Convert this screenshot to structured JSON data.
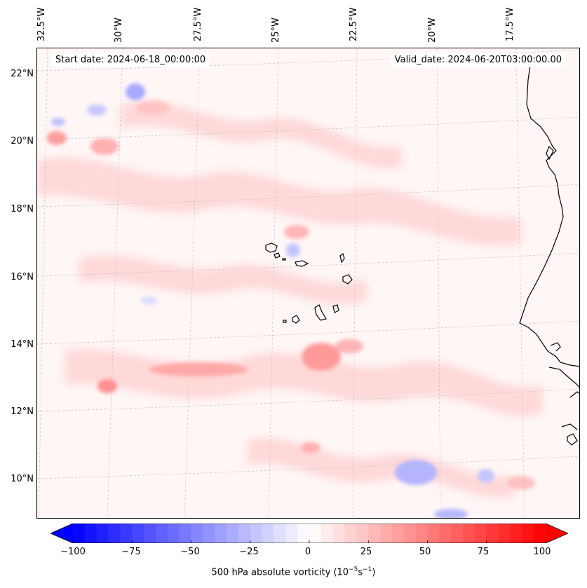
{
  "header": {
    "start_date": "Start date: 2024-06-18_00:00:00",
    "valid_date": "Valid_date: 2024-06-20T03:00:00.00"
  },
  "axes": {
    "longitude_labels": [
      "32.5°W",
      "30°W",
      "27.5°W",
      "25°W",
      "22.5°W",
      "20°W",
      "17.5°W"
    ],
    "latitude_labels": [
      "22°N",
      "20°N",
      "18°N",
      "16°N",
      "14°N",
      "12°N",
      "10°N"
    ]
  },
  "colorbar": {
    "label": "500 hPa absolute vorticity (10",
    "label_exp1": "−5",
    "label_mid": "s",
    "label_exp2": "−1",
    "label_end": ")",
    "ticks": [
      "−100",
      "−75",
      "−50",
      "−25",
      "0",
      "25",
      "50",
      "75",
      "100"
    ],
    "tick_values": [
      -100,
      -75,
      -50,
      -25,
      0,
      25,
      50,
      75,
      100
    ],
    "min": -100,
    "max": 100,
    "step": 5,
    "negative_color": "#0000ff",
    "positive_color": "#ff0000",
    "neutral_color": "#ffffff"
  },
  "map": {
    "background_color": "#fff6f6",
    "coastline_color": "#000000",
    "gridline_color": "#bbbbbb"
  }
}
